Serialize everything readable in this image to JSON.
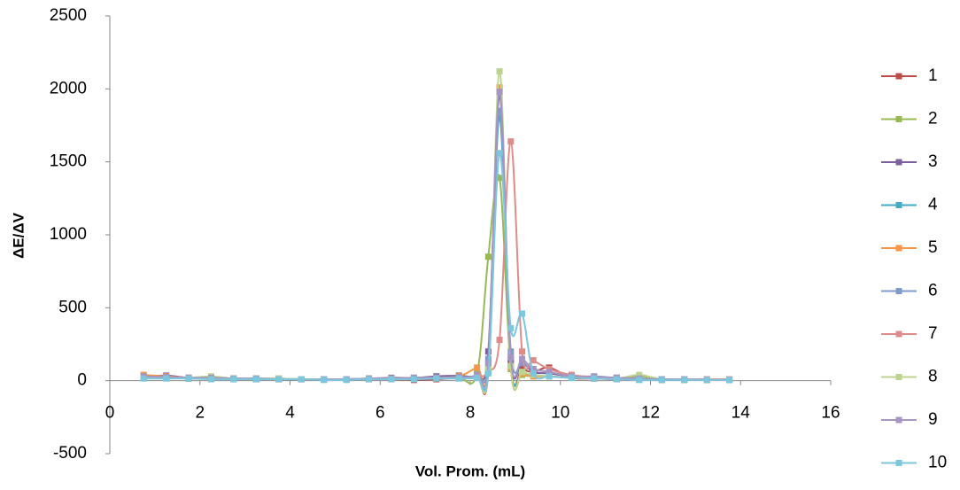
{
  "chart_data": {
    "type": "line",
    "x_label": "Vol. Prom. (mL)",
    "y_label": "ΔE/ΔV",
    "xlim": [
      0,
      16
    ],
    "xticks": [
      0,
      2,
      4,
      6,
      8,
      10,
      12,
      14,
      16
    ],
    "ylim": [
      -500,
      2500
    ],
    "yticks": [
      -500,
      0,
      500,
      1000,
      1500,
      2000,
      2500
    ],
    "grid": false,
    "legend": "right",
    "smooth": true,
    "x": [
      0.75,
      1.25,
      1.75,
      2.25,
      2.75,
      3.25,
      3.75,
      4.25,
      4.75,
      5.25,
      5.75,
      6.25,
      6.75,
      7.25,
      7.75,
      8.15,
      8.4,
      8.65,
      8.9,
      9.15,
      9.4,
      9.75,
      10.25,
      10.75,
      11.25,
      11.75,
      12.25,
      12.75,
      13.25,
      13.75
    ],
    "series": [
      {
        "name": "1",
        "color": "#be4b48",
        "values": [
          25,
          20,
          15,
          15,
          10,
          10,
          10,
          10,
          10,
          10,
          10,
          10,
          5,
          10,
          20,
          30,
          60,
          2000,
          120,
          80,
          60,
          90,
          20,
          15,
          10,
          10,
          5,
          5,
          5,
          5
        ]
      },
      {
        "name": "2",
        "color": "#98b954",
        "values": [
          30,
          25,
          20,
          20,
          15,
          15,
          10,
          10,
          10,
          10,
          15,
          15,
          15,
          20,
          20,
          50,
          850,
          1390,
          80,
          40,
          30,
          30,
          20,
          20,
          15,
          30,
          10,
          10,
          5,
          5
        ]
      },
      {
        "name": "3",
        "color": "#7d60a0",
        "values": [
          30,
          35,
          20,
          15,
          15,
          15,
          10,
          10,
          10,
          10,
          15,
          20,
          20,
          30,
          35,
          40,
          200,
          1950,
          150,
          130,
          60,
          50,
          30,
          25,
          20,
          15,
          10,
          10,
          5,
          5
        ]
      },
      {
        "name": "4",
        "color": "#46aac5",
        "values": [
          20,
          20,
          15,
          15,
          15,
          10,
          10,
          10,
          10,
          10,
          10,
          15,
          15,
          20,
          25,
          30,
          80,
          1800,
          100,
          60,
          40,
          30,
          20,
          20,
          15,
          10,
          10,
          5,
          5,
          5
        ]
      },
      {
        "name": "5",
        "color": "#f79646",
        "values": [
          40,
          30,
          20,
          20,
          15,
          15,
          15,
          10,
          10,
          10,
          15,
          15,
          15,
          20,
          30,
          90,
          100,
          2010,
          90,
          50,
          30,
          30,
          20,
          15,
          15,
          10,
          10,
          5,
          5,
          5
        ]
      },
      {
        "name": "6",
        "color": "#7f9bcb",
        "values": [
          25,
          20,
          20,
          15,
          15,
          15,
          15,
          10,
          10,
          10,
          15,
          15,
          20,
          20,
          25,
          40,
          150,
          1850,
          200,
          120,
          80,
          60,
          30,
          30,
          20,
          15,
          10,
          10,
          10,
          5
        ]
      },
      {
        "name": "7",
        "color": "#dd8c8a",
        "values": [
          20,
          20,
          15,
          15,
          10,
          10,
          10,
          10,
          10,
          10,
          10,
          15,
          15,
          20,
          20,
          30,
          60,
          280,
          1640,
          200,
          140,
          80,
          40,
          25,
          20,
          15,
          10,
          10,
          10,
          10
        ]
      },
      {
        "name": "8",
        "color": "#bcd48f",
        "values": [
          20,
          20,
          20,
          30,
          15,
          15,
          15,
          10,
          10,
          10,
          10,
          15,
          20,
          20,
          20,
          30,
          80,
          2120,
          100,
          60,
          40,
          30,
          20,
          20,
          15,
          40,
          10,
          10,
          5,
          5
        ]
      },
      {
        "name": "9",
        "color": "#a695c2",
        "values": [
          30,
          25,
          20,
          20,
          15,
          15,
          10,
          10,
          10,
          10,
          15,
          15,
          20,
          20,
          20,
          40,
          120,
          1980,
          160,
          150,
          80,
          60,
          30,
          25,
          20,
          15,
          10,
          10,
          5,
          5
        ]
      },
      {
        "name": "10",
        "color": "#7cc6de",
        "values": [
          15,
          15,
          15,
          10,
          10,
          10,
          10,
          10,
          5,
          5,
          10,
          10,
          10,
          15,
          15,
          20,
          50,
          1560,
          360,
          460,
          50,
          30,
          20,
          15,
          10,
          5,
          5,
          5,
          5,
          5
        ]
      }
    ]
  }
}
